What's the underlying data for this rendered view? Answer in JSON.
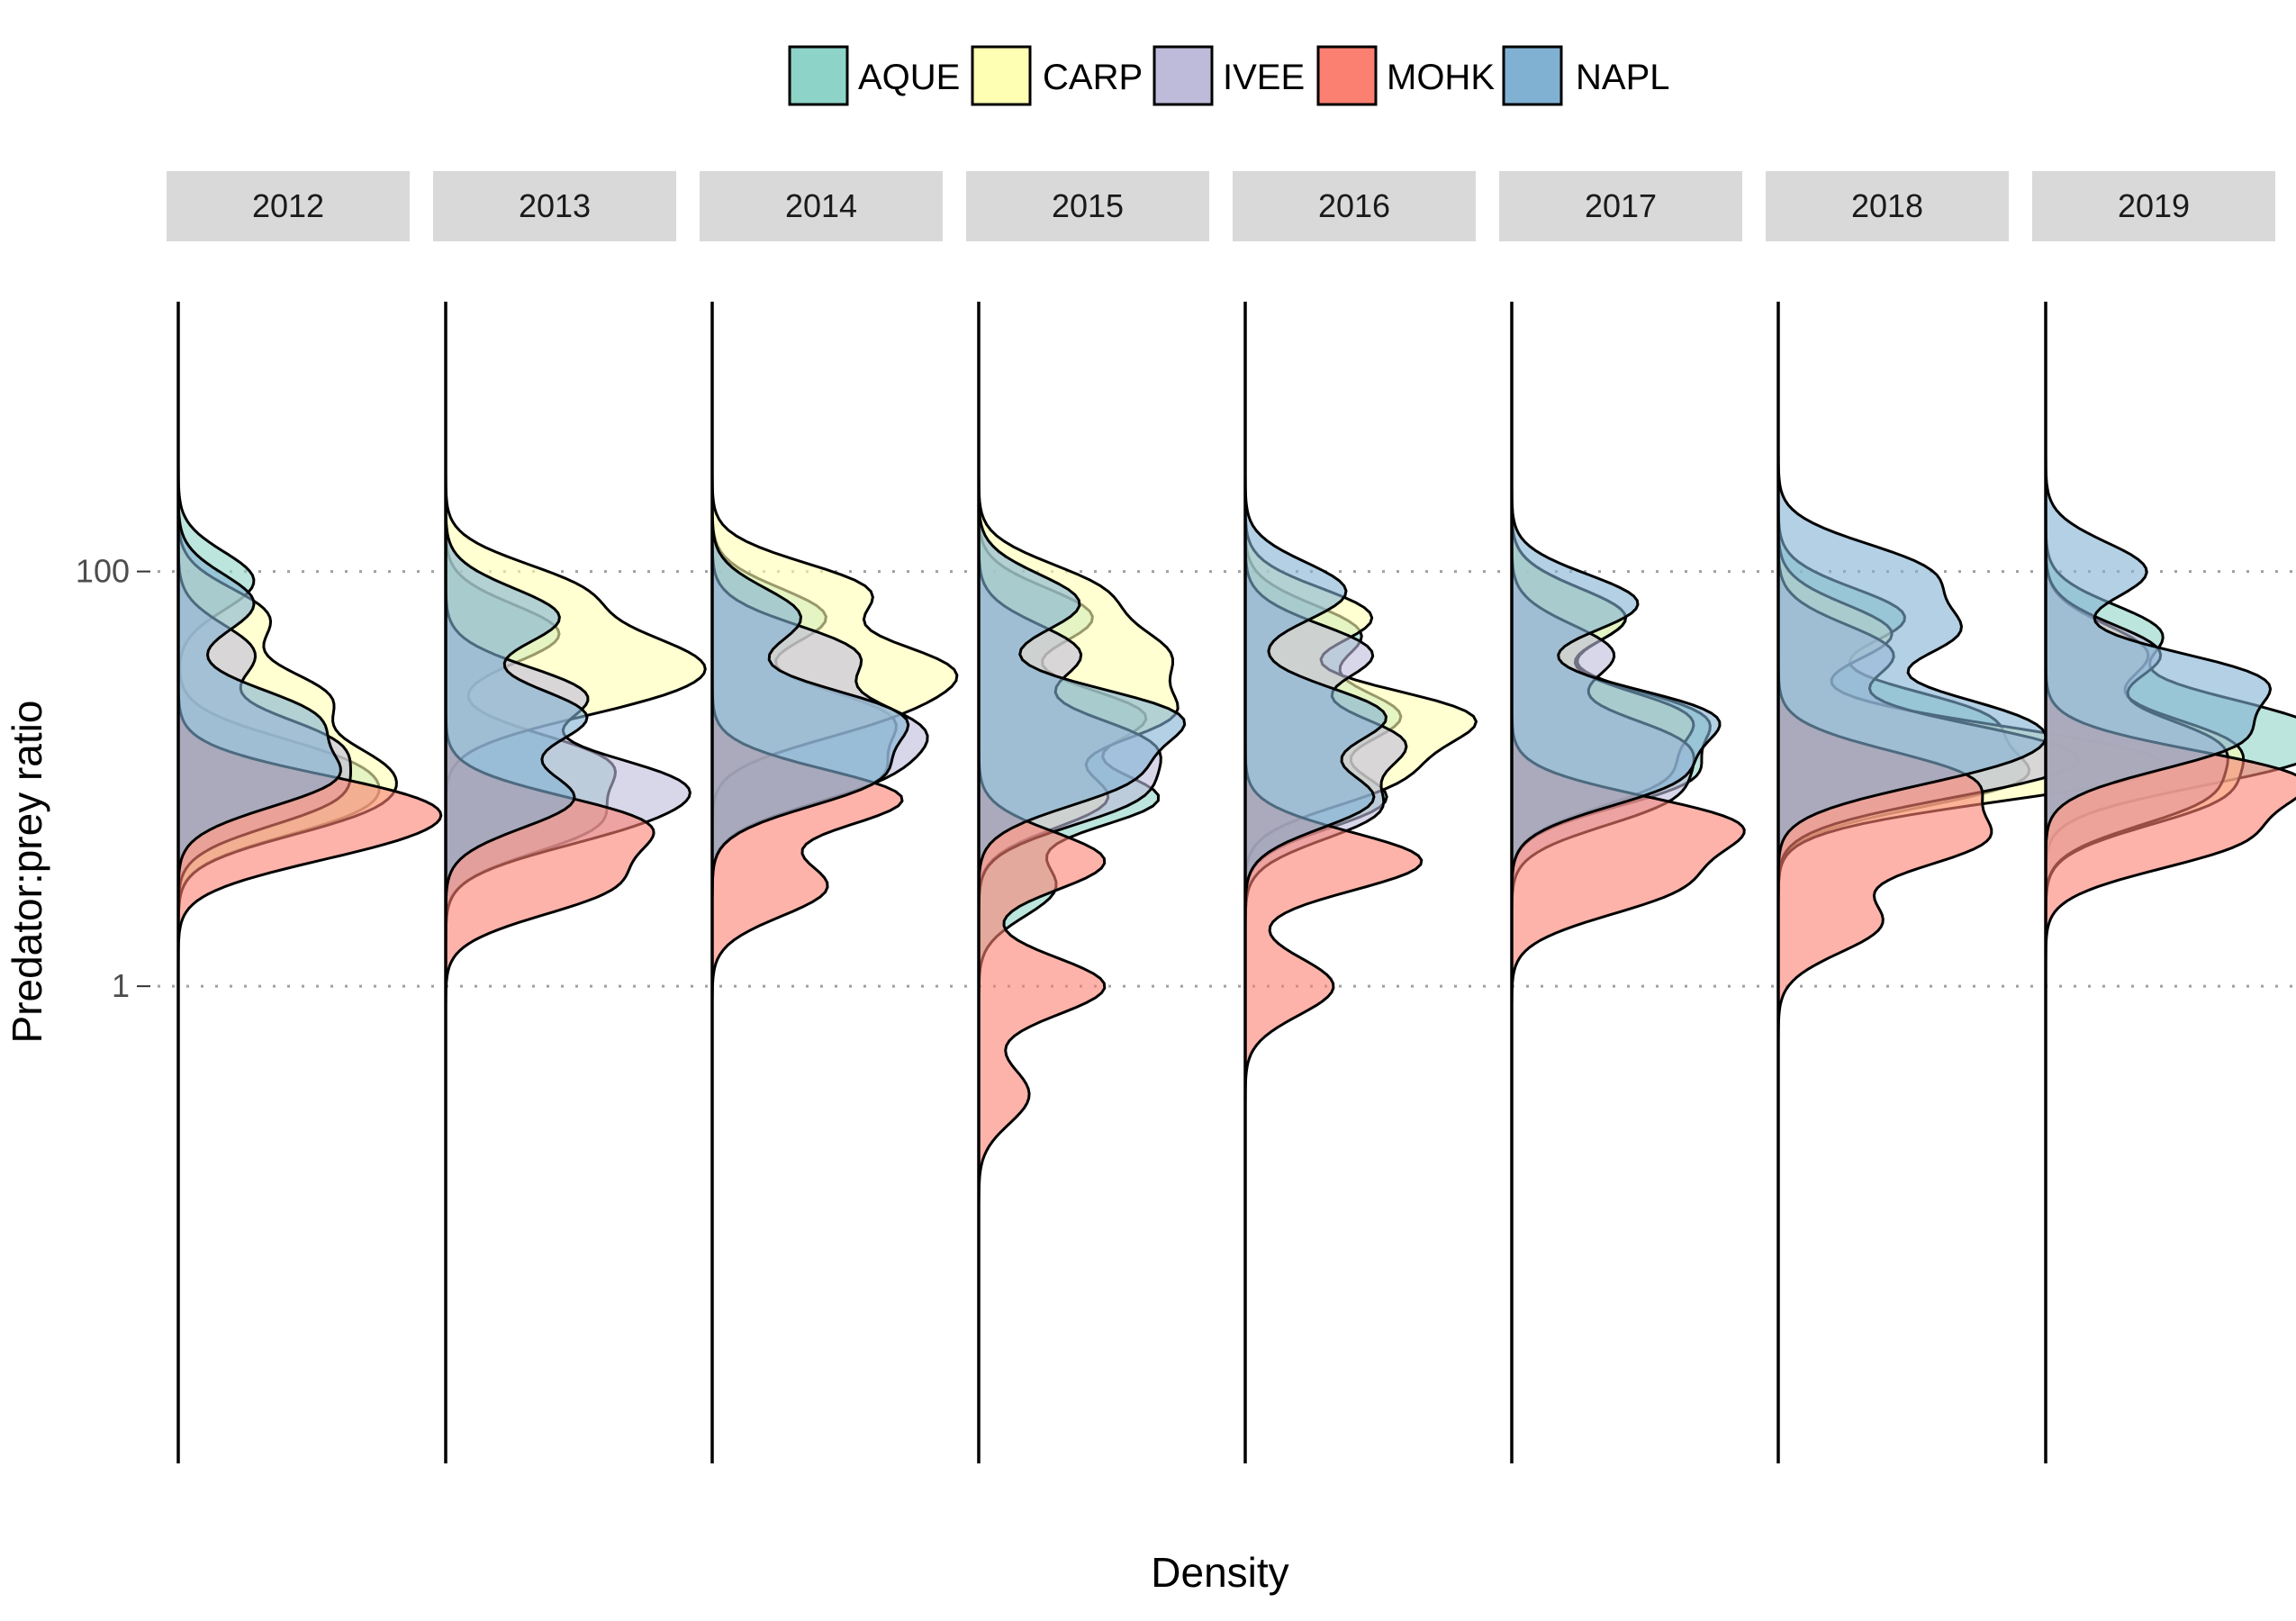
{
  "chart_data": {
    "type": "area",
    "subtype": "faceted half-violin density (ridgeline by year)",
    "xlabel": "Density",
    "ylabel": "Predator:prey ratio",
    "yscale": "log10",
    "ylim": [
      0.005,
      2000
    ],
    "yticks": [
      {
        "value": 1,
        "label": "1"
      },
      {
        "value": 100,
        "label": "100"
      }
    ],
    "grid": "major y, dotted",
    "legend_position": "top",
    "facets": [
      "2012",
      "2013",
      "2014",
      "2015",
      "2016",
      "2017",
      "2018",
      "2019"
    ],
    "series": [
      {
        "name": "AQUE",
        "color": "#8dd3c7"
      },
      {
        "name": "CARP",
        "color": "#ffffb3"
      },
      {
        "name": "IVEE",
        "color": "#bebada"
      },
      {
        "name": "MOHK",
        "color": "#fb8072"
      },
      {
        "name": "NAPL",
        "color": "#80b1d3"
      }
    ],
    "densities": {
      "2012": {
        "AQUE": {
          "range": [
            0.9,
            300
          ],
          "peaks": [
            [
              90,
              0.3
            ],
            [
              12,
              0.55
            ],
            [
              7,
              0.58
            ]
          ]
        },
        "CARP": {
          "range": [
            0.9,
            400
          ],
          "peaks": [
            [
              60,
              0.35
            ],
            [
              25,
              0.55
            ],
            [
              12,
              0.62
            ],
            [
              7,
              0.6
            ]
          ]
        },
        "IVEE": {
          "range": [
            0.9,
            250
          ],
          "peaks": [
            [
              40,
              0.3
            ],
            [
              15,
              0.55
            ],
            [
              8,
              0.55
            ]
          ]
        },
        "MOHK": {
          "range": [
            0.9,
            100
          ],
          "peaks": [
            [
              8,
              0.75
            ],
            [
              5,
              0.6
            ]
          ]
        },
        "NAPL": {
          "range": [
            0.9,
            300
          ],
          "peaks": [
            [
              70,
              0.3
            ],
            [
              20,
              0.5
            ],
            [
              10,
              0.58
            ]
          ]
        }
      },
      "2013": {
        "AQUE": {
          "range": [
            0.9,
            300
          ],
          "peaks": [
            [
              50,
              0.45
            ],
            [
              12,
              0.6
            ],
            [
              6,
              0.55
            ]
          ]
        },
        "CARP": {
          "range": [
            0.9,
            400
          ],
          "peaks": [
            [
              80,
              0.5
            ],
            [
              40,
              0.72
            ],
            [
              25,
              0.6
            ]
          ]
        },
        "IVEE": {
          "range": [
            0.9,
            300
          ],
          "peaks": [
            [
              25,
              0.55
            ],
            [
              10,
              0.75
            ],
            [
              6,
              0.55
            ]
          ]
        },
        "MOHK": {
          "range": [
            0.9,
            100
          ],
          "peaks": [
            [
              6,
              0.75
            ],
            [
              3,
              0.6
            ]
          ]
        },
        "NAPL": {
          "range": [
            0.9,
            300
          ],
          "peaks": [
            [
              60,
              0.45
            ],
            [
              20,
              0.55
            ],
            [
              8,
              0.5
            ]
          ]
        }
      },
      "2014": {
        "AQUE": {
          "range": [
            0.1,
            300
          ],
          "peaks": [
            [
              60,
              0.45
            ],
            [
              20,
              0.65
            ],
            [
              10,
              0.6
            ]
          ]
        },
        "CARP": {
          "range": [
            0.1,
            400
          ],
          "peaks": [
            [
              80,
              0.6
            ],
            [
              35,
              0.8
            ],
            [
              20,
              0.55
            ]
          ]
        },
        "IVEE": {
          "range": [
            0.1,
            300
          ],
          "peaks": [
            [
              40,
              0.55
            ],
            [
              18,
              0.7
            ],
            [
              10,
              0.55
            ]
          ]
        },
        "MOHK": {
          "range": [
            0.1,
            100
          ],
          "peaks": [
            [
              8,
              0.75
            ],
            [
              3,
              0.45
            ]
          ]
        },
        "NAPL": {
          "range": [
            0.1,
            300
          ],
          "peaks": [
            [
              60,
              0.35
            ],
            [
              20,
              0.7
            ],
            [
              10,
              0.6
            ]
          ]
        }
      },
      "2015": {
        "AQUE": {
          "range": [
            0.1,
            300
          ],
          "peaks": [
            [
              60,
              0.45
            ],
            [
              20,
              0.65
            ],
            [
              8,
              0.7
            ],
            [
              3,
              0.3
            ]
          ]
        },
        "CARP": {
          "range": [
            0.1,
            400
          ],
          "peaks": [
            [
              80,
              0.45
            ],
            [
              40,
              0.65
            ],
            [
              20,
              0.7
            ],
            [
              8,
              0.5
            ]
          ]
        },
        "IVEE": {
          "range": [
            0.1,
            300
          ],
          "peaks": [
            [
              40,
              0.4
            ],
            [
              15,
              0.6
            ],
            [
              8,
              0.55
            ]
          ]
        },
        "MOHK": {
          "range": [
            0.1,
            100
          ],
          "peaks": [
            [
              4,
              0.5
            ],
            [
              1,
              0.5
            ],
            [
              0.3,
              0.2
            ]
          ]
        },
        "NAPL": {
          "range": [
            0.1,
            300
          ],
          "peaks": [
            [
              70,
              0.4
            ],
            [
              20,
              0.75
            ],
            [
              10,
              0.55
            ]
          ]
        }
      },
      "2016": {
        "AQUE": {
          "range": [
            0.2,
            300
          ],
          "peaks": [
            [
              50,
              0.45
            ],
            [
              20,
              0.6
            ],
            [
              8,
              0.55
            ]
          ]
        },
        "CARP": {
          "range": [
            0.2,
            400
          ],
          "peaks": [
            [
              60,
              0.5
            ],
            [
              20,
              0.85
            ],
            [
              10,
              0.55
            ]
          ]
        },
        "IVEE": {
          "range": [
            0.2,
            300
          ],
          "peaks": [
            [
              40,
              0.5
            ],
            [
              15,
              0.6
            ],
            [
              7,
              0.5
            ]
          ]
        },
        "MOHK": {
          "range": [
            0.2,
            100
          ],
          "peaks": [
            [
              4,
              0.7
            ],
            [
              1,
              0.35
            ]
          ]
        },
        "NAPL": {
          "range": [
            0.2,
            300
          ],
          "peaks": [
            [
              80,
              0.4
            ],
            [
              20,
              0.55
            ],
            [
              8,
              0.5
            ]
          ]
        }
      },
      "2017": {
        "AQUE": {
          "range": [
            0.9,
            300
          ],
          "peaks": [
            [
              60,
              0.45
            ],
            [
              20,
              0.7
            ],
            [
              10,
              0.65
            ]
          ]
        },
        "CARP": {
          "range": [
            0.9,
            300
          ],
          "peaks": [
            [
              60,
              0.45
            ],
            [
              20,
              0.65
            ],
            [
              10,
              0.55
            ]
          ]
        },
        "IVEE": {
          "range": [
            0.9,
            250
          ],
          "peaks": [
            [
              40,
              0.4
            ],
            [
              15,
              0.6
            ],
            [
              8,
              0.55
            ]
          ]
        },
        "MOHK": {
          "range": [
            0.9,
            100
          ],
          "peaks": [
            [
              6,
              0.85
            ],
            [
              3,
              0.6
            ]
          ]
        },
        "NAPL": {
          "range": [
            0.9,
            300
          ],
          "peaks": [
            [
              70,
              0.5
            ],
            [
              20,
              0.75
            ],
            [
              10,
              0.6
            ]
          ]
        }
      },
      "2018": {
        "AQUE": {
          "range": [
            0.5,
            300
          ],
          "peaks": [
            [
              60,
              0.5
            ],
            [
              20,
              0.75
            ],
            [
              10,
              0.9
            ]
          ]
        },
        "CARP": {
          "range": [
            0.5,
            300
          ],
          "peaks": [
            [
              50,
              0.45
            ],
            [
              15,
              0.8
            ],
            [
              10,
              1.05
            ]
          ]
        },
        "IVEE": {
          "range": [
            0.5,
            300
          ],
          "peaks": [
            [
              40,
              0.45
            ],
            [
              15,
              0.75
            ],
            [
              10,
              0.7
            ]
          ]
        },
        "MOHK": {
          "range": [
            0.5,
            100
          ],
          "peaks": [
            [
              10,
              0.7
            ],
            [
              5,
              0.75
            ],
            [
              2,
              0.4
            ]
          ]
        },
        "NAPL": {
          "range": [
            0.5,
            400
          ],
          "peaks": [
            [
              100,
              0.55
            ],
            [
              50,
              0.65
            ],
            [
              20,
              0.75
            ],
            [
              12,
              0.7
            ]
          ]
        }
      },
      "2019": {
        "AQUE": {
          "range": [
            0.9,
            300
          ],
          "peaks": [
            [
              50,
              0.45
            ],
            [
              20,
              0.75
            ],
            [
              12,
              0.8
            ]
          ]
        },
        "CARP": {
          "range": [
            0.9,
            300
          ],
          "peaks": [
            [
              40,
              0.4
            ],
            [
              15,
              0.65
            ],
            [
              8,
              0.6
            ]
          ]
        },
        "IVEE": {
          "range": [
            0.9,
            300
          ],
          "peaks": [
            [
              40,
              0.45
            ],
            [
              15,
              0.6
            ],
            [
              8,
              0.55
            ]
          ]
        },
        "MOHK": {
          "range": [
            0.9,
            100
          ],
          "peaks": [
            [
              10,
              0.95
            ],
            [
              5,
              0.7
            ]
          ]
        },
        "NAPL": {
          "range": [
            0.9,
            500
          ],
          "peaks": [
            [
              100,
              0.4
            ],
            [
              30,
              0.8
            ],
            [
              15,
              0.7
            ]
          ]
        }
      }
    }
  }
}
